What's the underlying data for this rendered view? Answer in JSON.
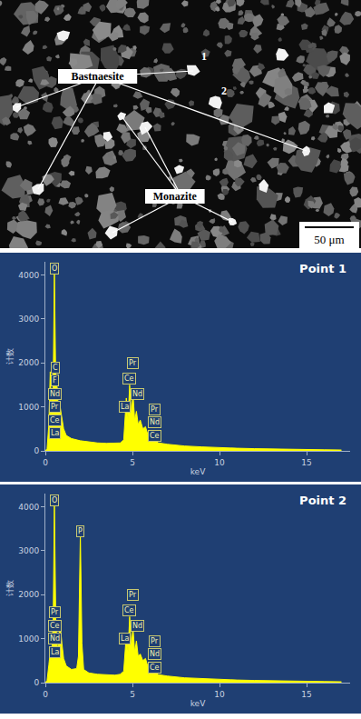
{
  "sem_image": {
    "labels": [
      "Bastnaesite",
      "Monazite"
    ],
    "points": [
      "1",
      "2"
    ],
    "scale_bar": "50 μm"
  },
  "chart_data": [
    {
      "type": "line",
      "title": "Point 1",
      "x_label": "keV",
      "y_label": "计数",
      "color": "#ffff00",
      "grid": false,
      "xlim": [
        0,
        17.5
      ],
      "xticks": [
        0,
        5,
        10,
        15
      ],
      "ylim": [
        0,
        4300
      ],
      "yticks": [
        0,
        1000,
        2000,
        3000,
        4000
      ],
      "x": [
        0,
        0.1,
        0.2,
        0.28,
        0.35,
        0.45,
        0.52,
        0.6,
        0.68,
        0.75,
        0.85,
        0.95,
        1.05,
        1.2,
        1.5,
        2.0,
        2.5,
        3.0,
        3.5,
        4.0,
        4.3,
        4.5,
        4.65,
        4.75,
        4.84,
        4.93,
        5.03,
        5.13,
        5.23,
        5.33,
        5.45,
        5.6,
        5.75,
        5.9,
        6.05,
        6.2,
        6.5,
        7.0,
        8.0,
        9.0,
        10.0,
        11.0,
        12.0,
        13.0,
        14.0,
        15.0,
        16.0,
        17.0
      ],
      "values": [
        0,
        50,
        600,
        1800,
        900,
        1500,
        4100,
        1500,
        1450,
        900,
        1000,
        700,
        500,
        350,
        280,
        230,
        200,
        180,
        170,
        170,
        180,
        250,
        1200,
        700,
        1500,
        800,
        1300,
        700,
        900,
        600,
        700,
        500,
        550,
        350,
        450,
        250,
        180,
        150,
        110,
        90,
        70,
        60,
        50,
        40,
        35,
        30,
        25,
        20
      ],
      "annotations": [
        {
          "text": "O",
          "x": 0.52,
          "y": 4150
        },
        {
          "text": "C",
          "x": 0.55,
          "y": 1900
        },
        {
          "text": "F",
          "x": 0.55,
          "y": 1600
        },
        {
          "text": "Nd",
          "x": 0.55,
          "y": 1300
        },
        {
          "text": "Pr",
          "x": 0.55,
          "y": 1000
        },
        {
          "text": "Ce",
          "x": 0.55,
          "y": 700
        },
        {
          "text": "La",
          "x": 0.55,
          "y": 400
        },
        {
          "text": "Pr",
          "x": 5.0,
          "y": 2000
        },
        {
          "text": "Ce",
          "x": 4.8,
          "y": 1650
        },
        {
          "text": "Nd",
          "x": 5.3,
          "y": 1300
        },
        {
          "text": "La",
          "x": 4.55,
          "y": 1000
        },
        {
          "text": "Pr",
          "x": 6.3,
          "y": 950
        },
        {
          "text": "Nd",
          "x": 6.3,
          "y": 650
        },
        {
          "text": "Ce",
          "x": 6.3,
          "y": 350
        }
      ]
    },
    {
      "type": "line",
      "title": "Point 2",
      "x_label": "keV",
      "y_label": "计数",
      "color": "#ffff00",
      "grid": false,
      "xlim": [
        0,
        17.5
      ],
      "xticks": [
        0,
        5,
        10,
        15
      ],
      "ylim": [
        0,
        4300
      ],
      "yticks": [
        0,
        1000,
        2000,
        3000,
        4000
      ],
      "x": [
        0,
        0.1,
        0.2,
        0.28,
        0.35,
        0.45,
        0.52,
        0.6,
        0.7,
        0.85,
        0.95,
        1.05,
        1.2,
        1.5,
        1.8,
        1.9,
        2.01,
        2.1,
        2.2,
        2.5,
        3.0,
        3.5,
        4.0,
        4.3,
        4.5,
        4.65,
        4.75,
        4.84,
        4.93,
        5.03,
        5.13,
        5.23,
        5.33,
        5.45,
        5.6,
        5.75,
        5.9,
        6.05,
        6.2,
        6.5,
        7.0,
        8.0,
        9.0,
        10.0,
        11.0,
        12.0,
        13.0,
        14.0,
        15.0,
        16.0,
        17.0
      ],
      "values": [
        0,
        50,
        400,
        700,
        500,
        1400,
        4100,
        1400,
        700,
        1300,
        900,
        550,
        380,
        300,
        320,
        600,
        3400,
        900,
        300,
        220,
        190,
        175,
        170,
        190,
        260,
        1100,
        700,
        1500,
        800,
        1250,
        700,
        950,
        600,
        650,
        500,
        550,
        350,
        420,
        250,
        180,
        150,
        110,
        90,
        70,
        60,
        50,
        40,
        35,
        30,
        25,
        20
      ],
      "annotations": [
        {
          "text": "O",
          "x": 0.52,
          "y": 4150
        },
        {
          "text": "P",
          "x": 2.01,
          "y": 3450
        },
        {
          "text": "Pr",
          "x": 0.55,
          "y": 1600
        },
        {
          "text": "Ce",
          "x": 0.55,
          "y": 1300
        },
        {
          "text": "Nd",
          "x": 0.55,
          "y": 1000
        },
        {
          "text": "La",
          "x": 0.55,
          "y": 700
        },
        {
          "text": "Pr",
          "x": 5.0,
          "y": 2000
        },
        {
          "text": "Ce",
          "x": 4.8,
          "y": 1650
        },
        {
          "text": "Nd",
          "x": 5.3,
          "y": 1300
        },
        {
          "text": "La",
          "x": 4.55,
          "y": 1000
        },
        {
          "text": "Pr",
          "x": 6.3,
          "y": 950
        },
        {
          "text": "Nd",
          "x": 6.3,
          "y": 650
        },
        {
          "text": "Ce",
          "x": 6.3,
          "y": 350
        }
      ]
    }
  ]
}
